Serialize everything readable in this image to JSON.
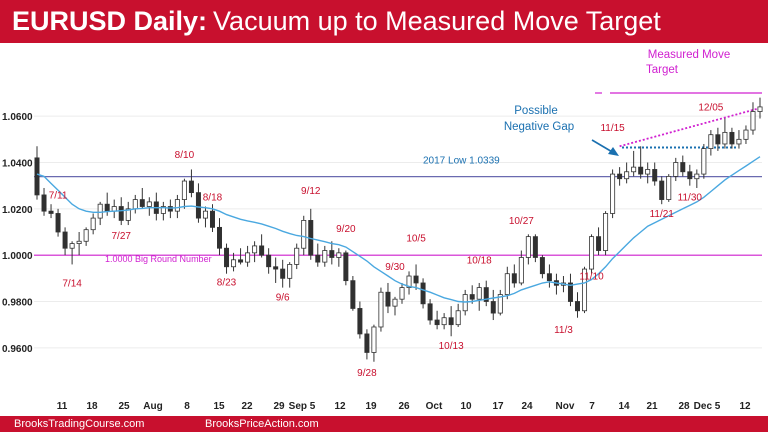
{
  "header": {
    "title_bold": "EURUSD Daily:",
    "title_rest": "Vacuum up to Measured Move Target"
  },
  "footer": {
    "left": "BrooksTradingCourse.com",
    "right": "BrooksPriceAction.com"
  },
  "colors": {
    "brand_red": "#c8102e",
    "label_red": "#c8102e",
    "magenta": "#d020d0",
    "ema": "#4aa8e0",
    "support_line": "#6a6ab0",
    "dotted_gap": "#1a70b0",
    "candle_bull": "#ffffff",
    "candle_bear": "#303030"
  },
  "chart_data": {
    "type": "candlestick",
    "ylim": [
      0.95,
      1.07
    ],
    "y_ticks": [
      "1.0600",
      "1.0400",
      "1.0200",
      "1.0000",
      "0.9800",
      "0.9600"
    ],
    "x_ticks": [
      "11",
      "18",
      "25",
      "Aug",
      "8",
      "15",
      "22",
      "29",
      "Sep 5",
      "12",
      "19",
      "26",
      "Oct",
      "10",
      "17",
      "24",
      "Nov",
      "7",
      "14",
      "21",
      "28",
      "Dec 5",
      "12"
    ],
    "candles": [
      {
        "o": 1.042,
        "h": 1.047,
        "l": 1.024,
        "c": 1.026
      },
      {
        "o": 1.026,
        "h": 1.029,
        "l": 1.017,
        "c": 1.019
      },
      {
        "o": 1.019,
        "h": 1.022,
        "l": 1.016,
        "c": 1.018
      },
      {
        "o": 1.018,
        "h": 1.02,
        "l": 1.008,
        "c": 1.01
      },
      {
        "o": 1.01,
        "h": 1.012,
        "l": 1.0,
        "c": 1.003
      },
      {
        "o": 1.003,
        "h": 1.006,
        "l": 0.996,
        "c": 1.005
      },
      {
        "o": 1.005,
        "h": 1.01,
        "l": 1.0,
        "c": 1.006
      },
      {
        "o": 1.006,
        "h": 1.012,
        "l": 1.004,
        "c": 1.011
      },
      {
        "o": 1.011,
        "h": 1.018,
        "l": 1.009,
        "c": 1.016
      },
      {
        "o": 1.016,
        "h": 1.023,
        "l": 1.013,
        "c": 1.022
      },
      {
        "o": 1.022,
        "h": 1.027,
        "l": 1.017,
        "c": 1.019
      },
      {
        "o": 1.019,
        "h": 1.024,
        "l": 1.016,
        "c": 1.021
      },
      {
        "o": 1.021,
        "h": 1.025,
        "l": 1.013,
        "c": 1.015
      },
      {
        "o": 1.015,
        "h": 1.023,
        "l": 1.013,
        "c": 1.02
      },
      {
        "o": 1.02,
        "h": 1.026,
        "l": 1.018,
        "c": 1.024
      },
      {
        "o": 1.024,
        "h": 1.029,
        "l": 1.02,
        "c": 1.021
      },
      {
        "o": 1.021,
        "h": 1.025,
        "l": 1.017,
        "c": 1.023
      },
      {
        "o": 1.023,
        "h": 1.027,
        "l": 1.015,
        "c": 1.018
      },
      {
        "o": 1.018,
        "h": 1.023,
        "l": 1.015,
        "c": 1.021
      },
      {
        "o": 1.021,
        "h": 1.024,
        "l": 1.016,
        "c": 1.019
      },
      {
        "o": 1.019,
        "h": 1.026,
        "l": 1.016,
        "c": 1.024
      },
      {
        "o": 1.024,
        "h": 1.033,
        "l": 1.02,
        "c": 1.032
      },
      {
        "o": 1.032,
        "h": 1.037,
        "l": 1.025,
        "c": 1.027
      },
      {
        "o": 1.027,
        "h": 1.031,
        "l": 1.014,
        "c": 1.016
      },
      {
        "o": 1.016,
        "h": 1.021,
        "l": 1.012,
        "c": 1.019
      },
      {
        "o": 1.019,
        "h": 1.022,
        "l": 1.01,
        "c": 1.012
      },
      {
        "o": 1.012,
        "h": 1.016,
        "l": 1.0,
        "c": 1.003
      },
      {
        "o": 1.003,
        "h": 1.005,
        "l": 0.992,
        "c": 0.995
      },
      {
        "o": 0.995,
        "h": 1.001,
        "l": 0.993,
        "c": 0.998
      },
      {
        "o": 0.998,
        "h": 1.003,
        "l": 0.996,
        "c": 0.997
      },
      {
        "o": 0.997,
        "h": 1.004,
        "l": 0.995,
        "c": 1.001
      },
      {
        "o": 1.001,
        "h": 1.006,
        "l": 0.997,
        "c": 1.004
      },
      {
        "o": 1.004,
        "h": 1.009,
        "l": 0.999,
        "c": 1.0
      },
      {
        "o": 1.0,
        "h": 1.003,
        "l": 0.992,
        "c": 0.995
      },
      {
        "o": 0.995,
        "h": 0.999,
        "l": 0.988,
        "c": 0.994
      },
      {
        "o": 0.994,
        "h": 0.998,
        "l": 0.986,
        "c": 0.99
      },
      {
        "o": 0.99,
        "h": 0.997,
        "l": 0.986,
        "c": 0.996
      },
      {
        "o": 0.996,
        "h": 1.005,
        "l": 0.994,
        "c": 1.003
      },
      {
        "o": 1.003,
        "h": 1.017,
        "l": 1.0,
        "c": 1.015
      },
      {
        "o": 1.015,
        "h": 1.02,
        "l": 0.998,
        "c": 1.0
      },
      {
        "o": 1.0,
        "h": 1.005,
        "l": 0.995,
        "c": 0.997
      },
      {
        "o": 0.997,
        "h": 1.004,
        "l": 0.995,
        "c": 1.002
      },
      {
        "o": 1.002,
        "h": 1.006,
        "l": 0.996,
        "c": 0.999
      },
      {
        "o": 0.999,
        "h": 1.003,
        "l": 0.995,
        "c": 1.001
      },
      {
        "o": 1.001,
        "h": 1.002,
        "l": 0.987,
        "c": 0.989
      },
      {
        "o": 0.989,
        "h": 0.991,
        "l": 0.976,
        "c": 0.977
      },
      {
        "o": 0.977,
        "h": 0.98,
        "l": 0.964,
        "c": 0.966
      },
      {
        "o": 0.966,
        "h": 0.968,
        "l": 0.955,
        "c": 0.958
      },
      {
        "o": 0.958,
        "h": 0.97,
        "l": 0.954,
        "c": 0.969
      },
      {
        "o": 0.969,
        "h": 0.986,
        "l": 0.967,
        "c": 0.984
      },
      {
        "o": 0.984,
        "h": 0.988,
        "l": 0.975,
        "c": 0.978
      },
      {
        "o": 0.978,
        "h": 0.982,
        "l": 0.974,
        "c": 0.981
      },
      {
        "o": 0.981,
        "h": 0.988,
        "l": 0.979,
        "c": 0.986
      },
      {
        "o": 0.986,
        "h": 0.993,
        "l": 0.983,
        "c": 0.991
      },
      {
        "o": 0.991,
        "h": 0.996,
        "l": 0.985,
        "c": 0.988
      },
      {
        "o": 0.988,
        "h": 0.99,
        "l": 0.977,
        "c": 0.979
      },
      {
        "o": 0.979,
        "h": 0.981,
        "l": 0.97,
        "c": 0.972
      },
      {
        "o": 0.972,
        "h": 0.976,
        "l": 0.968,
        "c": 0.97
      },
      {
        "o": 0.97,
        "h": 0.975,
        "l": 0.968,
        "c": 0.973
      },
      {
        "o": 0.973,
        "h": 0.978,
        "l": 0.965,
        "c": 0.97
      },
      {
        "o": 0.97,
        "h": 0.979,
        "l": 0.969,
        "c": 0.976
      },
      {
        "o": 0.976,
        "h": 0.985,
        "l": 0.974,
        "c": 0.983
      },
      {
        "o": 0.983,
        "h": 0.987,
        "l": 0.979,
        "c": 0.981
      },
      {
        "o": 0.981,
        "h": 0.988,
        "l": 0.976,
        "c": 0.986
      },
      {
        "o": 0.986,
        "h": 0.989,
        "l": 0.978,
        "c": 0.98
      },
      {
        "o": 0.98,
        "h": 0.985,
        "l": 0.972,
        "c": 0.975
      },
      {
        "o": 0.975,
        "h": 0.985,
        "l": 0.974,
        "c": 0.983
      },
      {
        "o": 0.983,
        "h": 0.995,
        "l": 0.981,
        "c": 0.992
      },
      {
        "o": 0.992,
        "h": 0.996,
        "l": 0.986,
        "c": 0.988
      },
      {
        "o": 0.988,
        "h": 1.002,
        "l": 0.987,
        "c": 0.999
      },
      {
        "o": 0.999,
        "h": 1.009,
        "l": 0.996,
        "c": 1.008
      },
      {
        "o": 1.008,
        "h": 1.009,
        "l": 0.997,
        "c": 0.999
      },
      {
        "o": 0.999,
        "h": 1.0,
        "l": 0.99,
        "c": 0.992
      },
      {
        "o": 0.992,
        "h": 0.996,
        "l": 0.986,
        "c": 0.989
      },
      {
        "o": 0.989,
        "h": 0.992,
        "l": 0.983,
        "c": 0.987
      },
      {
        "o": 0.987,
        "h": 0.991,
        "l": 0.984,
        "c": 0.988
      },
      {
        "o": 0.988,
        "h": 0.992,
        "l": 0.978,
        "c": 0.98
      },
      {
        "o": 0.98,
        "h": 0.984,
        "l": 0.973,
        "c": 0.976
      },
      {
        "o": 0.976,
        "h": 0.995,
        "l": 0.975,
        "c": 0.994
      },
      {
        "o": 0.994,
        "h": 1.009,
        "l": 0.992,
        "c": 1.008
      },
      {
        "o": 1.008,
        "h": 1.012,
        "l": 1.0,
        "c": 1.002
      },
      {
        "o": 1.002,
        "h": 1.019,
        "l": 1.0,
        "c": 1.018
      },
      {
        "o": 1.018,
        "h": 1.037,
        "l": 1.016,
        "c": 1.035
      },
      {
        "o": 1.035,
        "h": 1.038,
        "l": 1.03,
        "c": 1.033
      },
      {
        "o": 1.033,
        "h": 1.04,
        "l": 1.031,
        "c": 1.036
      },
      {
        "o": 1.036,
        "h": 1.045,
        "l": 1.034,
        "c": 1.038
      },
      {
        "o": 1.038,
        "h": 1.047,
        "l": 1.033,
        "c": 1.035
      },
      {
        "o": 1.035,
        "h": 1.04,
        "l": 1.031,
        "c": 1.037
      },
      {
        "o": 1.037,
        "h": 1.04,
        "l": 1.03,
        "c": 1.032
      },
      {
        "o": 1.032,
        "h": 1.034,
        "l": 1.022,
        "c": 1.024
      },
      {
        "o": 1.024,
        "h": 1.035,
        "l": 1.023,
        "c": 1.034
      },
      {
        "o": 1.034,
        "h": 1.042,
        "l": 1.032,
        "c": 1.04
      },
      {
        "o": 1.04,
        "h": 1.043,
        "l": 1.034,
        "c": 1.036
      },
      {
        "o": 1.036,
        "h": 1.039,
        "l": 1.03,
        "c": 1.033
      },
      {
        "o": 1.033,
        "h": 1.037,
        "l": 1.029,
        "c": 1.035
      },
      {
        "o": 1.035,
        "h": 1.048,
        "l": 1.033,
        "c": 1.046
      },
      {
        "o": 1.046,
        "h": 1.054,
        "l": 1.043,
        "c": 1.052
      },
      {
        "o": 1.052,
        "h": 1.055,
        "l": 1.045,
        "c": 1.048
      },
      {
        "o": 1.048,
        "h": 1.059,
        "l": 1.046,
        "c": 1.053
      },
      {
        "o": 1.053,
        "h": 1.055,
        "l": 1.046,
        "c": 1.048
      },
      {
        "o": 1.048,
        "h": 1.054,
        "l": 1.046,
        "c": 1.05
      },
      {
        "o": 1.05,
        "h": 1.056,
        "l": 1.048,
        "c": 1.054
      },
      {
        "o": 1.054,
        "h": 1.066,
        "l": 1.052,
        "c": 1.062
      },
      {
        "o": 1.062,
        "h": 1.068,
        "l": 1.059,
        "c": 1.064
      }
    ],
    "ema": [
      1.035,
      1.034,
      1.031,
      1.028,
      1.025,
      1.022,
      1.02,
      1.019,
      1.0185,
      1.0185,
      1.0188,
      1.019,
      1.0192,
      1.0195,
      1.02,
      1.0202,
      1.0205,
      1.0205,
      1.0205,
      1.0203,
      1.0205,
      1.021,
      1.0212,
      1.0208,
      1.0205,
      1.02,
      1.019,
      1.0175,
      1.0165,
      1.0155,
      1.0148,
      1.0142,
      1.0135,
      1.0125,
      1.0115,
      1.0103,
      1.0093,
      1.0085,
      1.008,
      1.0072,
      1.0065,
      1.0058,
      1.005,
      1.0045,
      1.0035,
      1.0015,
      0.9995,
      0.9975,
      0.995,
      0.993,
      0.991,
      0.989,
      0.9875,
      0.9865,
      0.986,
      0.985,
      0.984,
      0.9828,
      0.9816,
      0.9808,
      0.98,
      0.9798,
      0.98,
      0.9805,
      0.981,
      0.9815,
      0.982,
      0.9825,
      0.9835,
      0.985,
      0.986,
      0.987,
      0.988,
      0.9885,
      0.988,
      0.9875,
      0.987,
      0.9875,
      0.988,
      0.9895,
      0.992,
      0.995,
      0.9985,
      1.0015,
      1.0045,
      1.0075,
      1.01,
      1.0125,
      1.014,
      1.0155,
      1.017,
      1.0185,
      1.02,
      1.0215,
      1.023,
      1.025,
      1.0275,
      1.03,
      1.0325,
      1.0345,
      1.0365,
      1.0385,
      1.0405,
      1.0425
    ],
    "horizontal_lines": [
      {
        "name": "support-line-2017-low",
        "value": 1.0339,
        "label": "2017 Low 1.0339"
      },
      {
        "name": "round-number-line",
        "value": 1.0,
        "label": "1.0000 Big Round Number"
      },
      {
        "name": "measured-move-target-line",
        "value": 1.07
      }
    ],
    "annotations": [
      {
        "text": "7/11",
        "i": 3,
        "y": 1.0245
      },
      {
        "text": "7/14",
        "i": 5,
        "y": 0.9865
      },
      {
        "text": "7/27",
        "i": 12,
        "y": 1.007
      },
      {
        "text": "8/10",
        "i": 21,
        "y": 1.042
      },
      {
        "text": "8/18",
        "i": 25,
        "y": 1.0235
      },
      {
        "text": "8/23",
        "i": 27,
        "y": 0.987
      },
      {
        "text": "9/6",
        "i": 35,
        "y": 0.9805
      },
      {
        "text": "9/12",
        "i": 39,
        "y": 1.0265
      },
      {
        "text": "9/20",
        "i": 44,
        "y": 1.01
      },
      {
        "text": "9/30",
        "i": 51,
        "y": 0.9935
      },
      {
        "text": "9/28",
        "i": 47,
        "y": 0.9478
      },
      {
        "text": "10/5",
        "i": 54,
        "y": 1.006
      },
      {
        "text": "10/13",
        "i": 59,
        "y": 0.9595
      },
      {
        "text": "10/18",
        "i": 63,
        "y": 0.9965
      },
      {
        "text": "10/27",
        "i": 69,
        "y": 1.0135
      },
      {
        "text": "11/3",
        "i": 75,
        "y": 0.9665
      },
      {
        "text": "11/10",
        "i": 79,
        "y": 0.9895
      },
      {
        "text": "11/15",
        "i": 82,
        "y": 1.0535
      },
      {
        "text": "11/21",
        "i": 89,
        "y": 1.0165
      },
      {
        "text": "11/30",
        "i": 93,
        "y": 1.0235
      },
      {
        "text": "12/05",
        "i": 96,
        "y": 1.0625
      }
    ],
    "callouts": {
      "possible_negative_gap": [
        "Possible",
        "Negative Gap"
      ],
      "measured_move_target": [
        "Measured Move",
        "Target"
      ]
    },
    "negative_gap_level": 1.0465,
    "trendline": {
      "from_i": 83,
      "from_y": 1.047,
      "to_i": 103,
      "to_y": 1.0635
    }
  }
}
